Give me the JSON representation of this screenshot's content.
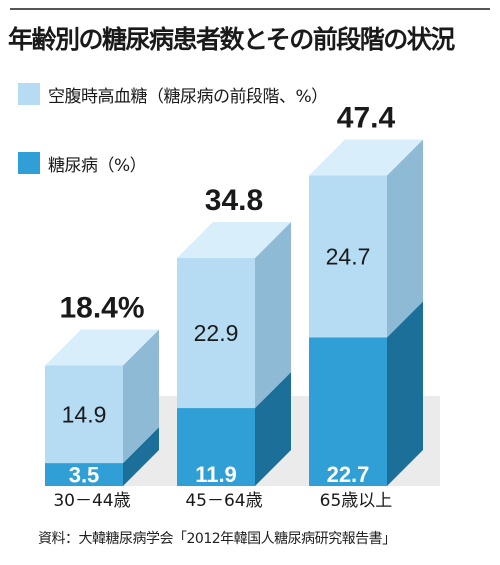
{
  "title": "年齢別の糖尿病患者数とその前段階の状況",
  "source": "資料：大韓糖尿病学会「2012年韓国人糖尿病研究報告書」",
  "colors": {
    "prediabetes_front": "#b5dcf3",
    "prediabetes_side": "#8fbad6",
    "prediabetes_top": "#d8eefa",
    "diabetes_front": "#2f9fd6",
    "diabetes_side": "#1c6f98",
    "diabetes_top": "#55b4e2",
    "total_label": "#1a1a1a"
  },
  "chart_data": {
    "type": "bar",
    "stacked": true,
    "categories": [
      "30－44歳",
      "45－64歳",
      "65歳以上"
    ],
    "series": [
      {
        "name": "糖尿病（%）",
        "values": [
          3.5,
          11.9,
          22.7
        ],
        "value_labels": [
          "3.5",
          "11.9",
          "22.7"
        ]
      },
      {
        "name": "空腹時高血糖（糖尿病の前段階、%）",
        "values": [
          14.9,
          22.9,
          24.7
        ],
        "value_labels": [
          "14.9",
          "22.9",
          "24.7"
        ]
      }
    ],
    "totals": [
      18.4,
      34.8,
      47.4
    ],
    "total_labels": [
      "18.4%",
      "34.8",
      "47.4"
    ],
    "legend_position": "top-left",
    "grid": false,
    "title": "年齢別の糖尿病患者数とその前段階の状況",
    "xlabel": "",
    "ylabel": ""
  }
}
